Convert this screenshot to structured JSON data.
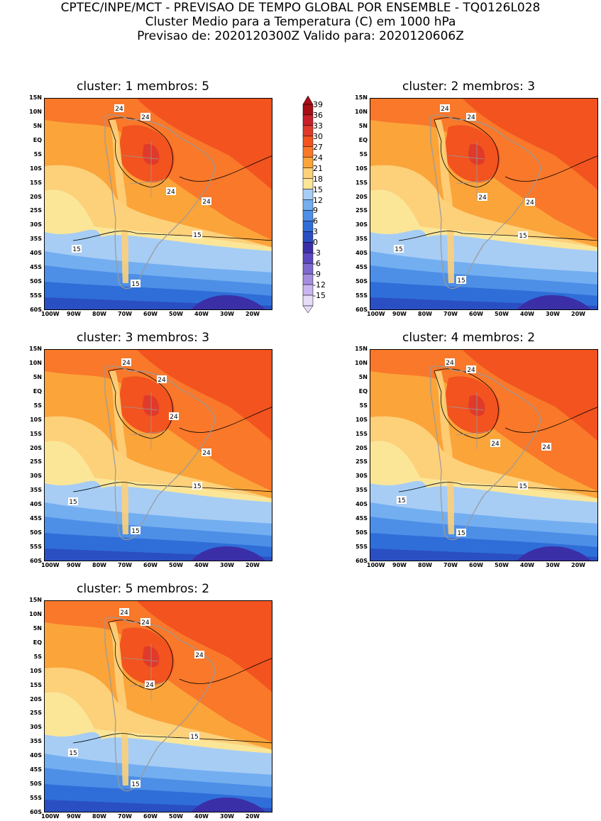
{
  "header": {
    "line1": "CPTEC/INPE/MCT - PREVISAO DE TEMPO GLOBAL POR ENSEMBLE - TQ0126L028",
    "line2": "Cluster Medio para a Temperatura (C) em 1000 hPa",
    "line3": "Previsao de: 2020120300Z   Valido para: 2020120606Z"
  },
  "panels": [
    {
      "title": "cluster: 1   membros: 5",
      "labels": [
        "24",
        "24",
        "24",
        "24",
        "15",
        "15",
        "15"
      ]
    },
    {
      "title": "cluster: 2   membros: 3",
      "labels": [
        "24",
        "24",
        "24",
        "24",
        "15",
        "15",
        "15"
      ]
    },
    {
      "title": "cluster: 3   membros: 3",
      "labels": [
        "24",
        "24",
        "24",
        "24",
        "15",
        "15",
        "15"
      ]
    },
    {
      "title": "cluster: 4   membros: 2",
      "labels": [
        "24",
        "24",
        "24",
        "24",
        "15",
        "15",
        "15"
      ]
    },
    {
      "title": "cluster: 5   membros: 2",
      "labels": [
        "24",
        "24",
        "24",
        "24",
        "15",
        "15",
        "15"
      ]
    }
  ],
  "lat_labels": [
    "15N",
    "10N",
    "5N",
    "EQ",
    "5S",
    "10S",
    "15S",
    "20S",
    "25S",
    "30S",
    "35S",
    "40S",
    "45S",
    "50S",
    "55S",
    "60S"
  ],
  "lon_labels": [
    "100W",
    "90W",
    "80W",
    "70W",
    "60W",
    "50W",
    "40W",
    "30W",
    "20W"
  ],
  "colorbar": {
    "ticks": [
      "39",
      "36",
      "33",
      "30",
      "27",
      "24",
      "21",
      "18",
      "15",
      "12",
      "9",
      "6",
      "3",
      "0",
      "-3",
      "-6",
      "-9",
      "-12",
      "-15"
    ],
    "colors": [
      "#a50f15",
      "#c8202a",
      "#e03a2a",
      "#f2531f",
      "#f9782a",
      "#fba43a",
      "#fdd07a",
      "#fbe698",
      "#a7cdf5",
      "#73aef0",
      "#4d8fe6",
      "#2f6ed8",
      "#2a4fc2",
      "#3b2fa8",
      "#5c48c0",
      "#7e6ad0",
      "#a48ee0",
      "#c9b6ef",
      "#e6dcf8"
    ]
  },
  "chart_data": {
    "type": "heatmap",
    "variable": "Temperatura (C) em 1000 hPa",
    "lat_range": [
      "60S",
      "15N"
    ],
    "lon_range": [
      "100W",
      "20W"
    ],
    "contour_levels": [
      15,
      24
    ],
    "clusters": [
      {
        "cluster": 1,
        "membros": 5
      },
      {
        "cluster": 2,
        "membros": 3
      },
      {
        "cluster": 3,
        "membros": 3
      },
      {
        "cluster": 4,
        "membros": 2
      },
      {
        "cluster": 5,
        "membros": 2
      }
    ]
  }
}
